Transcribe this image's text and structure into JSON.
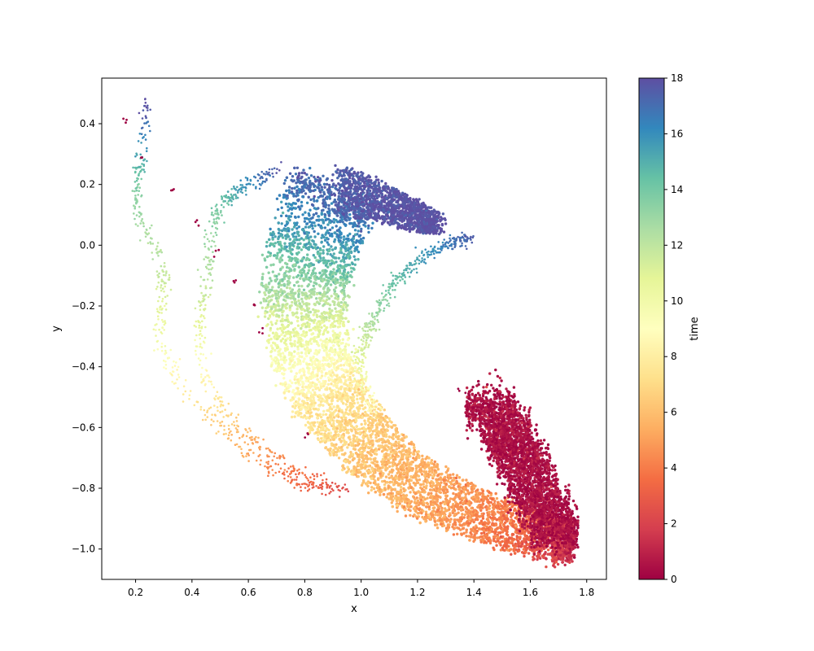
{
  "chart_data": {
    "type": "scatter",
    "title": "",
    "xlabel": "x",
    "ylabel": "y",
    "xlim": [
      0.08,
      1.87
    ],
    "ylim": [
      -1.1,
      0.55
    ],
    "xticks": [
      0.2,
      0.4,
      0.6,
      0.8,
      1.0,
      1.2,
      1.4,
      1.6,
      1.8
    ],
    "yticks": [
      -1.0,
      -0.8,
      -0.6,
      -0.4,
      -0.2,
      0.0,
      0.2,
      0.4
    ],
    "xtick_labels": [
      "0.2",
      "0.4",
      "0.6",
      "0.8",
      "1.0",
      "1.2",
      "1.4",
      "1.6",
      "1.8"
    ],
    "ytick_labels": [
      "−1.0",
      "−0.8",
      "−0.6",
      "−0.4",
      "−0.2",
      "0.0",
      "0.2",
      "0.4"
    ],
    "grid": false,
    "colormap": "Spectral",
    "colorbar": {
      "label": "time",
      "range": [
        0,
        18
      ],
      "ticks": [
        0,
        2,
        4,
        6,
        8,
        10,
        12,
        14,
        16,
        18
      ],
      "tick_labels": [
        "0",
        "2",
        "4",
        "6",
        "8",
        "10",
        "12",
        "14",
        "16",
        "18"
      ],
      "colors": [
        "#9e0142",
        "#d53e4f",
        "#f46d43",
        "#fdae61",
        "#fee08b",
        "#ffffbf",
        "#e6f598",
        "#abdda4",
        "#66c2a5",
        "#3288bd",
        "#5e4fa2"
      ]
    },
    "main_band_path": [
      {
        "x": 0.92,
        "y": 0.2,
        "time": 17.6
      },
      {
        "x": 0.85,
        "y": 0.05,
        "time": 16.0
      },
      {
        "x": 0.8,
        "y": -0.1,
        "time": 13.5
      },
      {
        "x": 0.8,
        "y": -0.25,
        "time": 11.0
      },
      {
        "x": 0.83,
        "y": -0.4,
        "time": 9.0
      },
      {
        "x": 0.9,
        "y": -0.52,
        "time": 7.5
      },
      {
        "x": 1.0,
        "y": -0.64,
        "time": 6.5
      },
      {
        "x": 1.12,
        "y": -0.74,
        "time": 5.8
      },
      {
        "x": 1.25,
        "y": -0.82,
        "time": 5.2
      },
      {
        "x": 1.4,
        "y": -0.88,
        "time": 4.5
      },
      {
        "x": 1.55,
        "y": -0.93,
        "time": 3.5
      },
      {
        "x": 1.68,
        "y": -0.97,
        "time": 2.0
      },
      {
        "x": 1.75,
        "y": -0.97,
        "time": 1.2
      }
    ],
    "upper_wing_path": [
      {
        "x": 0.92,
        "y": 0.18,
        "time": 17.5
      },
      {
        "x": 1.05,
        "y": 0.15,
        "time": 17.8
      },
      {
        "x": 1.18,
        "y": 0.1,
        "time": 17.9
      },
      {
        "x": 1.27,
        "y": 0.07,
        "time": 18.0
      }
    ],
    "dark_cluster_lines": [
      {
        "x0": 1.37,
        "x1": 1.55,
        "y": -0.53
      },
      {
        "x0": 1.42,
        "x1": 1.6,
        "y": -0.6
      },
      {
        "x0": 1.45,
        "x1": 1.63,
        "y": -0.66
      },
      {
        "x0": 1.48,
        "x1": 1.67,
        "y": -0.72
      },
      {
        "x0": 1.52,
        "x1": 1.7,
        "y": -0.79
      },
      {
        "x0": 1.56,
        "x1": 1.74,
        "y": -0.86
      },
      {
        "x0": 1.6,
        "x1": 1.77,
        "y": -0.93
      }
    ],
    "trajectories": [
      [
        {
          "x": 0.24,
          "y": 0.47,
          "time": 18.0
        },
        {
          "x": 0.23,
          "y": 0.37,
          "time": 16.5
        },
        {
          "x": 0.22,
          "y": 0.27,
          "time": 15.0
        },
        {
          "x": 0.2,
          "y": 0.18,
          "time": 13.5
        },
        {
          "x": 0.22,
          "y": 0.08,
          "time": 12.8
        },
        {
          "x": 0.27,
          "y": 0.0,
          "time": 12.3
        },
        {
          "x": 0.3,
          "y": -0.1,
          "time": 11.8
        },
        {
          "x": 0.29,
          "y": -0.2,
          "time": 10.8
        },
        {
          "x": 0.29,
          "y": -0.32,
          "time": 9.6
        },
        {
          "x": 0.35,
          "y": -0.45,
          "time": 8.4
        },
        {
          "x": 0.45,
          "y": -0.55,
          "time": 7.0
        },
        {
          "x": 0.55,
          "y": -0.65,
          "time": 5.8
        },
        {
          "x": 0.65,
          "y": -0.72,
          "time": 4.6
        },
        {
          "x": 0.75,
          "y": -0.77,
          "time": 3.6
        },
        {
          "x": 0.85,
          "y": -0.8,
          "time": 2.8
        },
        {
          "x": 0.95,
          "y": -0.8,
          "time": 2.2
        }
      ],
      [
        {
          "x": 0.72,
          "y": 0.27,
          "time": 18.0
        },
        {
          "x": 0.65,
          "y": 0.22,
          "time": 16.8
        },
        {
          "x": 0.58,
          "y": 0.19,
          "time": 15.8
        },
        {
          "x": 0.52,
          "y": 0.15,
          "time": 14.5
        },
        {
          "x": 0.48,
          "y": 0.08,
          "time": 13.5
        },
        {
          "x": 0.46,
          "y": -0.02,
          "time": 12.8
        },
        {
          "x": 0.45,
          "y": -0.12,
          "time": 12.0
        },
        {
          "x": 0.43,
          "y": -0.22,
          "time": 11.0
        },
        {
          "x": 0.43,
          "y": -0.33,
          "time": 9.8
        },
        {
          "x": 0.45,
          "y": -0.45,
          "time": 8.3
        },
        {
          "x": 0.52,
          "y": -0.55,
          "time": 7.0
        },
        {
          "x": 0.6,
          "y": -0.63,
          "time": 5.6
        },
        {
          "x": 0.7,
          "y": -0.7,
          "time": 4.5
        },
        {
          "x": 0.8,
          "y": -0.76,
          "time": 3.6
        },
        {
          "x": 0.88,
          "y": -0.79,
          "time": 3.0
        }
      ],
      [
        {
          "x": 1.4,
          "y": 0.03,
          "time": 17.5
        },
        {
          "x": 1.3,
          "y": 0.0,
          "time": 16.5
        },
        {
          "x": 1.2,
          "y": -0.05,
          "time": 15.5
        },
        {
          "x": 1.1,
          "y": -0.15,
          "time": 14.0
        },
        {
          "x": 1.04,
          "y": -0.25,
          "time": 12.5
        },
        {
          "x": 1.0,
          "y": -0.35,
          "time": 11.0
        },
        {
          "x": 1.0,
          "y": -0.45,
          "time": 9.8
        },
        {
          "x": 1.05,
          "y": -0.55,
          "time": 8.5
        }
      ]
    ],
    "scattered_points": [
      {
        "x": 0.16,
        "y": 0.41,
        "time": 0
      },
      {
        "x": 0.23,
        "y": 0.29,
        "time": 0
      },
      {
        "x": 0.33,
        "y": 0.18,
        "time": 0
      },
      {
        "x": 0.41,
        "y": 0.08,
        "time": 0
      },
      {
        "x": 0.48,
        "y": -0.02,
        "time": 0
      },
      {
        "x": 0.55,
        "y": -0.12,
        "time": 0
      },
      {
        "x": 0.62,
        "y": -0.2,
        "time": 0
      },
      {
        "x": 0.64,
        "y": -0.28,
        "time": 0
      },
      {
        "x": 1.35,
        "y": -0.48,
        "time": 0
      },
      {
        "x": 0.8,
        "y": -0.62,
        "time": 0
      }
    ]
  }
}
